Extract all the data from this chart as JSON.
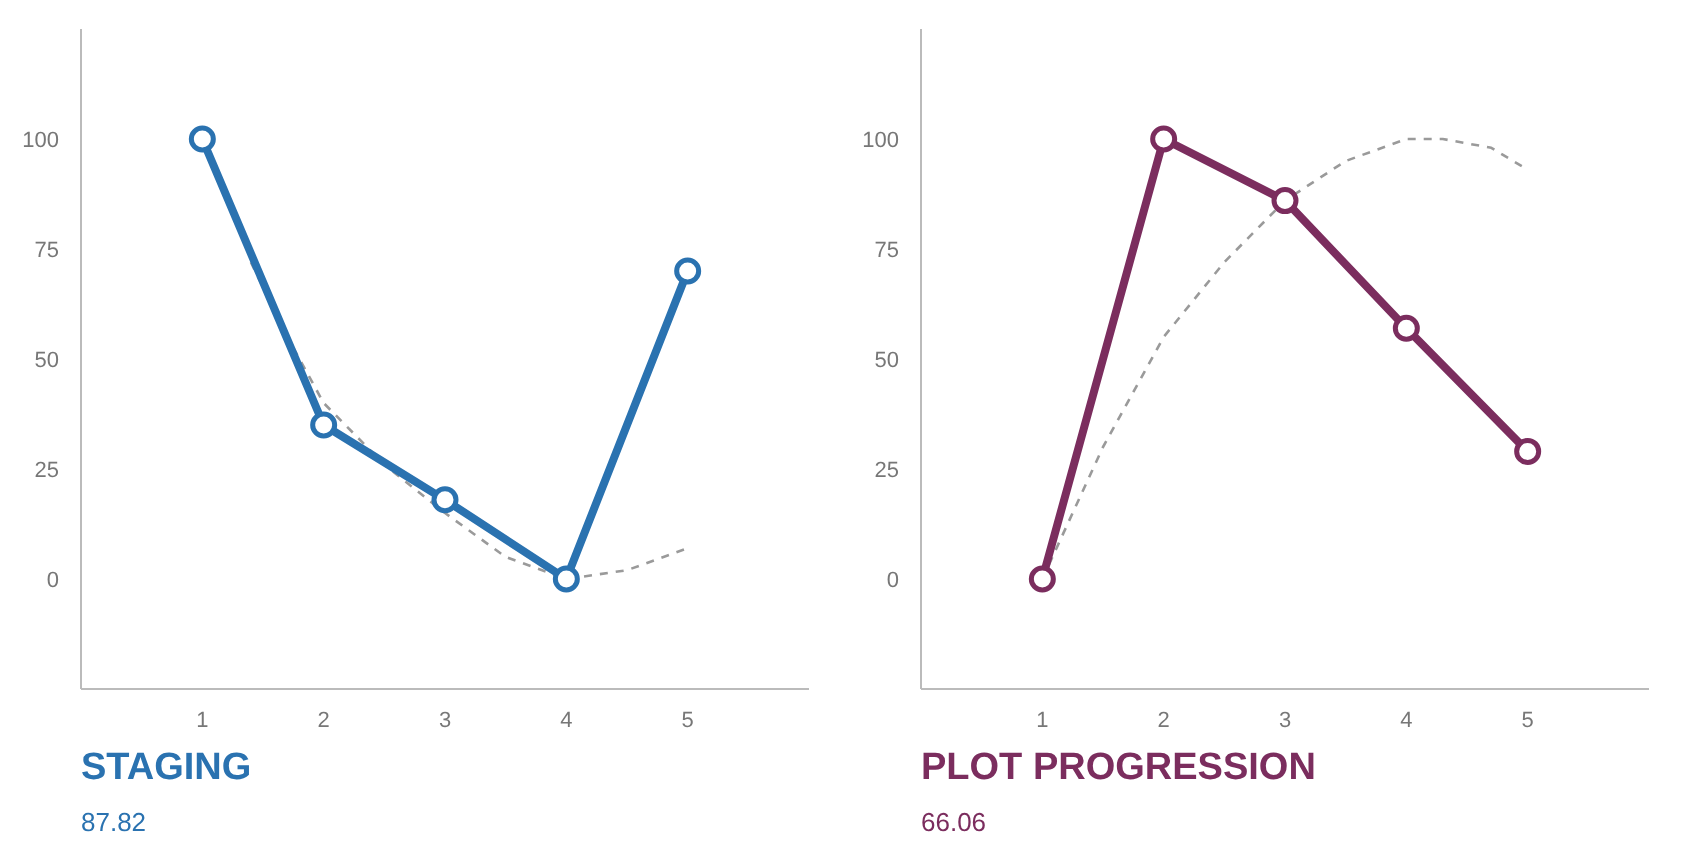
{
  "chart_data": [
    {
      "type": "line",
      "title": "STAGING",
      "subtitle": "87.82",
      "x": [
        1,
        2,
        3,
        4,
        5
      ],
      "xlim": [
        0,
        6
      ],
      "xticks": [
        1,
        2,
        3,
        4,
        5
      ],
      "ylim": [
        -25,
        125
      ],
      "yticks": [
        0,
        25,
        50,
        75,
        100
      ],
      "marker": "circle",
      "series": [
        {
          "color": "#2a72b0",
          "values": [
            100,
            35,
            18,
            0,
            70
          ]
        },
        {
          "color": "#9a9a9a",
          "line_style": "dashed",
          "marker": "none",
          "x": [
            1.4,
            1.7,
            2,
            2.5,
            3,
            3.5,
            4,
            4.5,
            5
          ],
          "values": [
            72,
            55,
            40,
            26,
            15,
            5,
            0,
            2,
            7
          ]
        }
      ]
    },
    {
      "type": "line",
      "title": "PLOT PROGRESSION",
      "subtitle": "66.06",
      "x": [
        1,
        2,
        3,
        4,
        5
      ],
      "xlim": [
        0,
        6
      ],
      "xticks": [
        1,
        2,
        3,
        4,
        5
      ],
      "ylim": [
        -25,
        125
      ],
      "yticks": [
        0,
        25,
        50,
        75,
        100
      ],
      "marker": "circle",
      "series": [
        {
          "color": "#7b2d5e",
          "values": [
            0,
            100,
            86,
            57,
            29
          ]
        },
        {
          "color": "#9a9a9a",
          "line_style": "dashed",
          "marker": "none",
          "x": [
            1,
            1.5,
            2,
            2.5,
            3,
            3.5,
            4,
            4.3,
            4.7,
            5
          ],
          "values": [
            0,
            30,
            55,
            72,
            86,
            95,
            100,
            100,
            98,
            93
          ]
        }
      ]
    }
  ]
}
